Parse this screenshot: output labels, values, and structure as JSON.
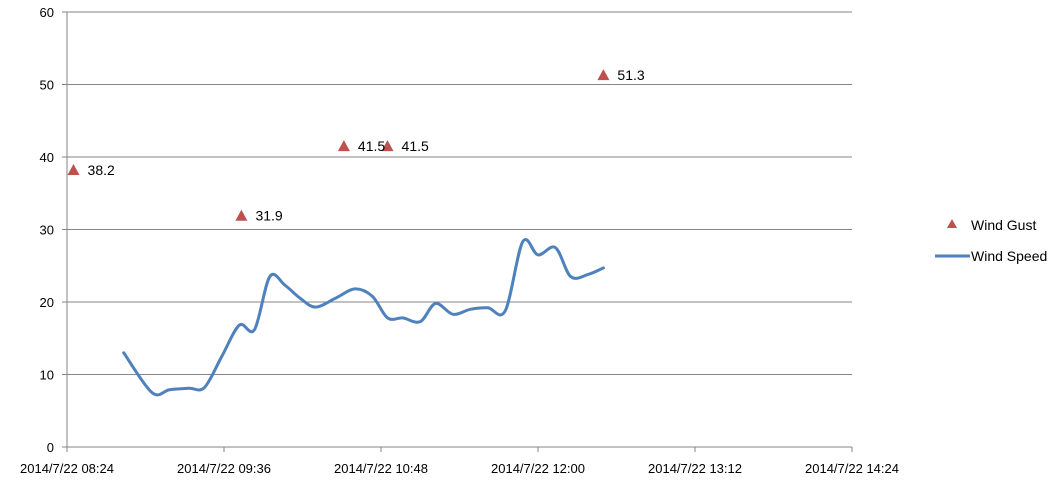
{
  "chart_data": {
    "type": "line",
    "title": "",
    "xlabel": "",
    "ylabel": "",
    "x_axis": {
      "type": "datetime",
      "range": [
        "2014/7/22 08:24",
        "2014/7/22 14:24"
      ],
      "tick_labels": [
        "2014/7/22 08:24",
        "2014/7/22 09:36",
        "2014/7/22 10:48",
        "2014/7/22 12:00",
        "2014/7/22 13:12",
        "2014/7/22 14:24"
      ]
    },
    "y_axis": {
      "range": [
        0,
        60
      ],
      "tick_labels": [
        "0",
        "10",
        "20",
        "30",
        "40",
        "50",
        "60"
      ]
    },
    "grid": "horizontal",
    "legend_position": "right",
    "series": [
      {
        "name": "Wind Gust",
        "kind": "scatter",
        "marker": "triangle",
        "color": "#C0504D",
        "points": [
          {
            "x": "2014/7/22 08:27",
            "y": 38.2,
            "label": "38.2"
          },
          {
            "x": "2014/7/22 09:44",
            "y": 31.9,
            "label": "31.9"
          },
          {
            "x": "2014/7/22 10:31",
            "y": 41.5,
            "label": "41.5"
          },
          {
            "x": "2014/7/22 10:51",
            "y": 41.5,
            "label": "41.5"
          },
          {
            "x": "2014/7/22 12:30",
            "y": 51.3,
            "label": "51.3"
          }
        ]
      },
      {
        "name": "Wind Speed",
        "kind": "line",
        "smooth": true,
        "color": "#4F81BD",
        "points": [
          {
            "x": "2014/7/22 08:50",
            "y": 13.0
          },
          {
            "x": "2014/7/22 09:03",
            "y": 7.5
          },
          {
            "x": "2014/7/22 09:11",
            "y": 7.9
          },
          {
            "x": "2014/7/22 09:20",
            "y": 8.1
          },
          {
            "x": "2014/7/22 09:27",
            "y": 8.2
          },
          {
            "x": "2014/7/22 09:35",
            "y": 12.5
          },
          {
            "x": "2014/7/22 09:43",
            "y": 16.8
          },
          {
            "x": "2014/7/22 09:50",
            "y": 16.2
          },
          {
            "x": "2014/7/22 09:57",
            "y": 23.5
          },
          {
            "x": "2014/7/22 10:04",
            "y": 22.3
          },
          {
            "x": "2014/7/22 10:11",
            "y": 20.5
          },
          {
            "x": "2014/7/22 10:18",
            "y": 19.3
          },
          {
            "x": "2014/7/22 10:27",
            "y": 20.5
          },
          {
            "x": "2014/7/22 10:36",
            "y": 21.8
          },
          {
            "x": "2014/7/22 10:44",
            "y": 20.8
          },
          {
            "x": "2014/7/22 10:51",
            "y": 17.8
          },
          {
            "x": "2014/7/22 10:58",
            "y": 17.8
          },
          {
            "x": "2014/7/22 11:06",
            "y": 17.3
          },
          {
            "x": "2014/7/22 11:13",
            "y": 19.8
          },
          {
            "x": "2014/7/22 11:21",
            "y": 18.3
          },
          {
            "x": "2014/7/22 11:29",
            "y": 19.0
          },
          {
            "x": "2014/7/22 11:37",
            "y": 19.2
          },
          {
            "x": "2014/7/22 11:45",
            "y": 18.8
          },
          {
            "x": "2014/7/22 11:53",
            "y": 28.3
          },
          {
            "x": "2014/7/22 12:00",
            "y": 26.5
          },
          {
            "x": "2014/7/22 12:08",
            "y": 27.5
          },
          {
            "x": "2014/7/22 12:15",
            "y": 23.5
          },
          {
            "x": "2014/7/22 12:23",
            "y": 23.8
          },
          {
            "x": "2014/7/22 12:30",
            "y": 24.7
          }
        ]
      }
    ]
  }
}
